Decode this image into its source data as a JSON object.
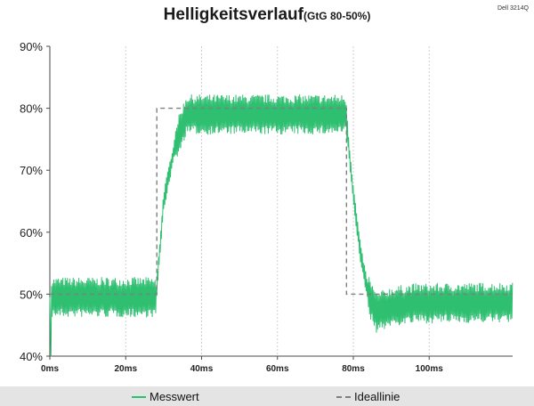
{
  "header": {
    "title": "Helligkeitsverlauf",
    "subtitle": "(GtG 80-50%)",
    "model": "Dell 3214Q"
  },
  "legend": {
    "measured": "Messwert",
    "ideal": "Ideallinie"
  },
  "colors": {
    "measured": "#2fbf71",
    "ideal": "#7f7f7f",
    "grid": "#d0d0d0",
    "axis": "#4a4a4a"
  },
  "chart_data": {
    "type": "line",
    "title": "Helligkeitsverlauf (GtG 80-50%)",
    "xlabel": "",
    "ylabel": "",
    "xlim": [
      0,
      122
    ],
    "ylim": [
      40,
      90
    ],
    "x_ticks": [
      "0ms",
      "20ms",
      "40ms",
      "60ms",
      "80ms",
      "100ms"
    ],
    "x_tick_values": [
      0,
      20,
      40,
      60,
      80,
      100
    ],
    "y_ticks": [
      "40%",
      "50%",
      "60%",
      "70%",
      "80%",
      "90%"
    ],
    "y_tick_values": [
      40,
      50,
      60,
      70,
      80,
      90
    ],
    "grid": "vertical",
    "legend_position": "bottom",
    "series": [
      {
        "name": "Messwert",
        "style": "solid-noisy",
        "profile": [
          [
            0,
            49.5
          ],
          [
            28,
            49.5
          ],
          [
            30,
            65
          ],
          [
            33,
            74
          ],
          [
            36,
            79
          ],
          [
            40,
            79
          ],
          [
            78,
            79
          ],
          [
            80,
            66
          ],
          [
            82,
            56
          ],
          [
            84,
            50
          ],
          [
            86,
            47
          ],
          [
            90,
            48
          ],
          [
            96,
            48.5
          ],
          [
            122,
            48.7
          ]
        ],
        "noise_amplitude": 3.2,
        "initial_dip": [
          0.3,
          40
        ]
      },
      {
        "name": "Ideallinie",
        "style": "dashed",
        "points": [
          [
            0,
            50
          ],
          [
            28.2,
            50
          ],
          [
            28.2,
            80
          ],
          [
            78.2,
            80
          ],
          [
            78.2,
            50
          ],
          [
            122,
            50
          ]
        ]
      }
    ]
  }
}
